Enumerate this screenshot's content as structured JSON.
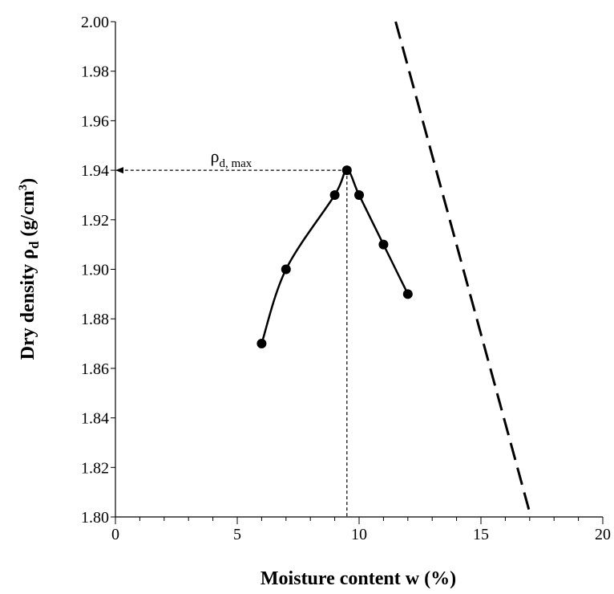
{
  "chart_data": {
    "type": "line",
    "xlabel": "Moisture content w (%)",
    "ylabel": [
      "Dry density ρ",
      "d",
      " (g/cm",
      "3",
      ")"
    ],
    "annotation": [
      "ρ",
      "d, max"
    ],
    "xlim": [
      0,
      20
    ],
    "ylim": [
      1.8,
      2.0
    ],
    "xticks": [
      0,
      5,
      10,
      15,
      20
    ],
    "x_minor_step": 1,
    "yticks": [
      {
        "value": 1.8,
        "label": "1.80"
      },
      {
        "value": 1.82,
        "label": "1.82"
      },
      {
        "value": 1.84,
        "label": "1.84"
      },
      {
        "value": 1.86,
        "label": "1.86"
      },
      {
        "value": 1.88,
        "label": "1.88"
      },
      {
        "value": 1.9,
        "label": "1.90"
      },
      {
        "value": 1.92,
        "label": "1.92"
      },
      {
        "value": 1.94,
        "label": "1.94"
      },
      {
        "value": 1.96,
        "label": "1.96"
      },
      {
        "value": 1.98,
        "label": "1.98"
      },
      {
        "value": 2.0,
        "label": "2.00"
      }
    ],
    "series": [
      {
        "color": "#000000",
        "style": "solid",
        "markers": true,
        "x": [
          6,
          7,
          9,
          9.5,
          10,
          11,
          12
        ],
        "values": [
          1.87,
          1.9,
          1.93,
          1.94,
          1.93,
          1.91,
          1.89
        ]
      },
      {
        "color": "#000000",
        "style": "dashed",
        "markers": false,
        "x": [
          11.5,
          17.05
        ],
        "values": [
          2.0,
          1.8
        ]
      }
    ]
  }
}
